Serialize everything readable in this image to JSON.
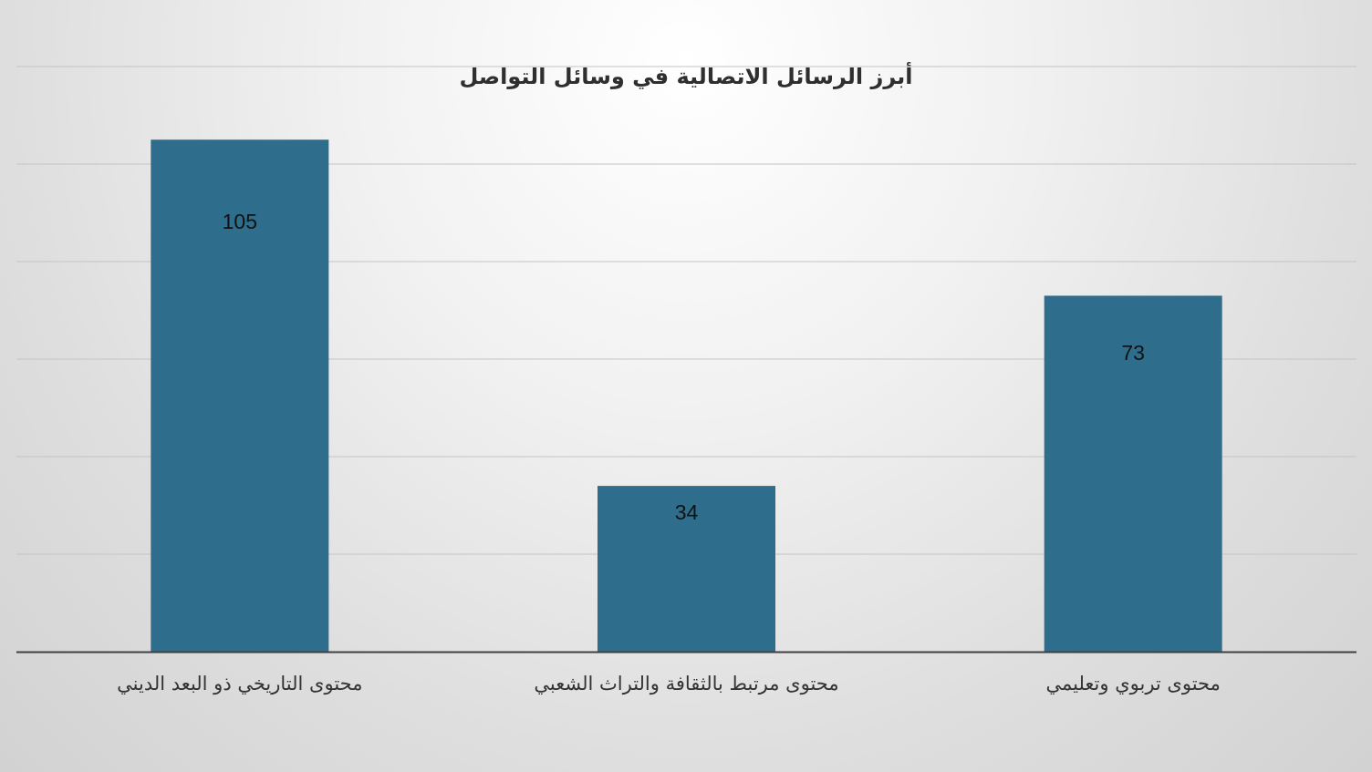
{
  "chart_data": {
    "type": "bar",
    "title": "أبرز الرسائل الاتصالية في وسائل التواصل",
    "categories": [
      "محتوى التاريخي ذو البعد الديني",
      "محتوى مرتبط بالثقافة والتراث الشعبي",
      "محتوى تربوي وتعليمي"
    ],
    "values": [
      105,
      34,
      73
    ],
    "xlabel": "",
    "ylabel": "",
    "ylim": [
      0,
      125
    ],
    "grid": true,
    "gridlines": [
      20,
      40,
      60,
      80,
      100,
      120
    ],
    "bar_color": "#2e6e8c",
    "data_labels": true,
    "legend": "none"
  }
}
